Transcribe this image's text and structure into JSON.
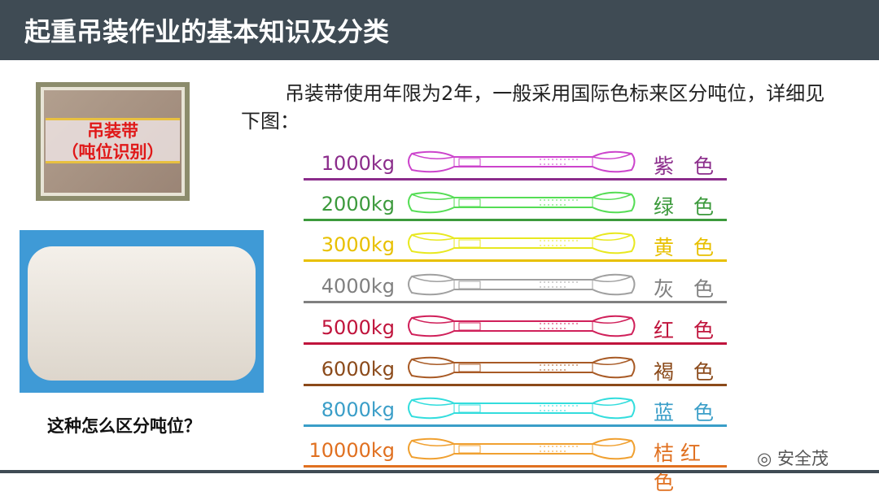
{
  "header": {
    "title": "起重吊装作业的基本知识及分类"
  },
  "intro": "吊装带使用年限为2年，一般采用国际色标来区分吨位，详细见下图：",
  "frame": {
    "line1": "吊装带",
    "line2": "（吨位识别）"
  },
  "question": "这种怎么区分吨位？",
  "watermark": "安全茂",
  "rows": [
    {
      "kg": "1000kg",
      "color_name": "紫 色",
      "text": "#8b2c8b",
      "sling": "#cc44cc"
    },
    {
      "kg": "2000kg",
      "color_name": "绿 色",
      "text": "#3c9a3c",
      "sling": "#55dd55"
    },
    {
      "kg": "3000kg",
      "color_name": "黄 色",
      "text": "#e8c000",
      "sling": "#e8e820"
    },
    {
      "kg": "4000kg",
      "color_name": "灰 色",
      "text": "#808080",
      "sling": "#a0a0a0"
    },
    {
      "kg": "5000kg",
      "color_name": "红 色",
      "text": "#c0143c",
      "sling": "#d0205a"
    },
    {
      "kg": "6000kg",
      "color_name": "褐 色",
      "text": "#8b4a1a",
      "sling": "#a85a25"
    },
    {
      "kg": "8000kg",
      "color_name": "蓝 色",
      "text": "#3a9ec8",
      "sling": "#33dddd"
    },
    {
      "kg": "10000kg",
      "color_name": "桔红色",
      "text": "#e07020",
      "sling": "#f0a030"
    }
  ]
}
